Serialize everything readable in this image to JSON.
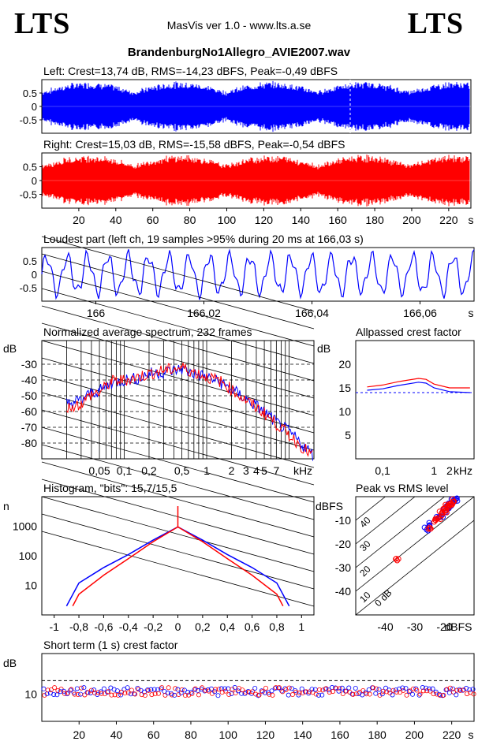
{
  "header": {
    "logo_left": "LTS",
    "logo_right": "LTS",
    "app_title": "MasVis ver 1.0 - www.lts.a.se",
    "file_name": "BrandenburgNo1Allegro_AVIE2007.wav"
  },
  "colors": {
    "left": "#0000ff",
    "right": "#ff0000",
    "axis": "#000000"
  },
  "chart_data": [
    {
      "type": "line",
      "title": "Left: Crest=13,74 dB, RMS=-14,23 dBFS, Peak=-0,49 dBFS",
      "channel": "left",
      "ylim": [
        -1,
        1
      ],
      "y_ticks": [
        "0.5",
        "0",
        "-0.5"
      ],
      "peak": -0.49,
      "rms_dbfs": -14.23,
      "crest_db": 13.74
    },
    {
      "type": "line",
      "title": "Right: Crest=15,03 dB, RMS=-15,58 dBFS, Peak=-0,54 dBFS",
      "channel": "right",
      "ylim": [
        -1,
        1
      ],
      "y_ticks": [
        "0.5",
        "0",
        "-0.5"
      ],
      "x_ticks": [
        "20",
        "40",
        "60",
        "80",
        "100",
        "120",
        "140",
        "160",
        "180",
        "200",
        "220"
      ],
      "x_unit": "s",
      "xlim": [
        0,
        232
      ],
      "peak": -0.54,
      "rms_dbfs": -15.58,
      "crest_db": 15.03
    },
    {
      "type": "line",
      "title": "Loudest part (left  ch, 19 samples >95% during 20 ms at 166,03 s)",
      "channel": "left",
      "ylim": [
        -1,
        1
      ],
      "y_ticks": [
        "0.5",
        "0",
        "-0.5"
      ],
      "x_ticks": [
        "166",
        "166,02",
        "166,04",
        "166,06"
      ],
      "x_unit": "s",
      "xlim": [
        165.99,
        166.07
      ]
    },
    {
      "type": "line",
      "title": "Normalized average spectrum, 232 frames",
      "ylabel": "dB",
      "y_ticks": [
        "-30",
        "-40",
        "-50",
        "-60",
        "-70",
        "-80"
      ],
      "ylim": [
        -90,
        -15
      ],
      "x_ticks": [
        "0,05",
        "0,1",
        "0,2",
        "0,5",
        "1",
        "2",
        "3",
        "4",
        "5",
        "7"
      ],
      "x_unit": "kHz",
      "xscale": "log",
      "series": [
        {
          "channel": "left",
          "x": [
            0.02,
            0.03,
            0.04,
            0.05,
            0.07,
            0.1,
            0.15,
            0.2,
            0.3,
            0.4,
            0.5,
            0.7,
            1,
            1.5,
            2,
            3,
            5,
            7,
            10,
            20
          ],
          "y": [
            -55,
            -53,
            -48,
            -47,
            -42,
            -40,
            -39,
            -36,
            -35,
            -34,
            -33,
            -36,
            -38,
            -42,
            -46,
            -52,
            -60,
            -67,
            -73,
            -88
          ]
        },
        {
          "channel": "right",
          "x": [
            0.02,
            0.03,
            0.04,
            0.05,
            0.07,
            0.1,
            0.15,
            0.2,
            0.3,
            0.4,
            0.5,
            0.7,
            1,
            1.5,
            2,
            3,
            5,
            7,
            10,
            20
          ],
          "y": [
            -58,
            -55,
            -49,
            -48,
            -41,
            -40,
            -38,
            -36,
            -34,
            -33,
            -32,
            -35,
            -38,
            -41,
            -46,
            -53,
            -61,
            -68,
            -75,
            -89
          ]
        }
      ]
    },
    {
      "type": "line",
      "title": "Allpassed crest factor",
      "ylabel": "dB",
      "y_ticks": [
        "20",
        "15",
        "10",
        "5"
      ],
      "ylim": [
        0,
        25
      ],
      "x_ticks": [
        "0,1",
        "1",
        "2"
      ],
      "x_unit": "kHz",
      "xscale": "log",
      "series": [
        {
          "channel": "left",
          "x": [
            0.05,
            0.1,
            0.2,
            0.5,
            0.7,
            1,
            2,
            5
          ],
          "y": [
            14.5,
            14.8,
            15.5,
            16.2,
            16,
            15,
            14.2,
            14
          ]
        },
        {
          "channel": "right",
          "x": [
            0.05,
            0.1,
            0.2,
            0.5,
            0.7,
            1,
            2,
            5
          ],
          "y": [
            15.2,
            15.6,
            16.3,
            17,
            16.8,
            15.8,
            15,
            15
          ]
        }
      ],
      "reference_line": 14
    },
    {
      "type": "line",
      "title": "Histogram, \"bits\": 15,7/15,5",
      "ylabel": "n",
      "yscale": "log",
      "y_ticks": [
        "1000",
        "100",
        "10"
      ],
      "x_ticks": [
        "-1",
        "-0,8",
        "-0,6",
        "-0,4",
        "-0,2",
        "0",
        "0,2",
        "0,4",
        "0,6",
        "0,8",
        "1"
      ],
      "xlim": [
        -1.1,
        1.1
      ],
      "series": [
        {
          "channel": "left",
          "x": [
            -0.9,
            -0.8,
            -0.6,
            -0.4,
            -0.2,
            0,
            0.2,
            0.4,
            0.6,
            0.8,
            0.9
          ],
          "y": [
            2,
            12,
            40,
            110,
            340,
            950,
            340,
            110,
            40,
            12,
            2
          ]
        },
        {
          "channel": "right",
          "x": [
            -0.85,
            -0.8,
            -0.6,
            -0.4,
            -0.2,
            0,
            0.2,
            0.4,
            0.6,
            0.8,
            0.85
          ],
          "y": [
            2,
            5,
            22,
            80,
            300,
            950,
            300,
            80,
            22,
            5,
            2
          ]
        }
      ]
    },
    {
      "type": "scatter",
      "title": "Peak vs RMS level",
      "ylabel": "dBFS",
      "y_ticks": [
        "-10",
        "-20",
        "-30",
        "-40"
      ],
      "ylim": [
        -50,
        0
      ],
      "x_ticks": [
        "-40",
        "-30",
        "-20"
      ],
      "xlabel": "dBFS",
      "xlim": [
        -50,
        -10
      ],
      "diagonal_labels": [
        "40",
        "30",
        "20",
        "10",
        "0 dB"
      ],
      "series": [
        {
          "channel": "left",
          "x": [
            -21,
            -20,
            -19,
            -18,
            -17,
            -16,
            -17,
            -19,
            -22,
            -25,
            -26
          ],
          "y": [
            -8,
            -6,
            -4,
            -3,
            -2,
            -1,
            -2,
            -5,
            -9,
            -12,
            -14
          ]
        },
        {
          "channel": "right",
          "x": [
            -22,
            -21,
            -20,
            -19,
            -18,
            -17,
            -18,
            -20,
            -23,
            -25,
            -36
          ],
          "y": [
            -9,
            -7,
            -5,
            -4,
            -3,
            -2,
            -3,
            -6,
            -10,
            -13,
            -27
          ]
        }
      ]
    },
    {
      "type": "scatter",
      "title": "Short term (1 s) crest factor",
      "ylabel": "dB",
      "y_ticks": [
        "10"
      ],
      "ylim": [
        0,
        25
      ],
      "x_ticks": [
        "20",
        "40",
        "60",
        "80",
        "100",
        "120",
        "140",
        "160",
        "180",
        "200",
        "220"
      ],
      "x_unit": "s",
      "xlim": [
        0,
        232
      ],
      "reference_line": 15
    }
  ]
}
